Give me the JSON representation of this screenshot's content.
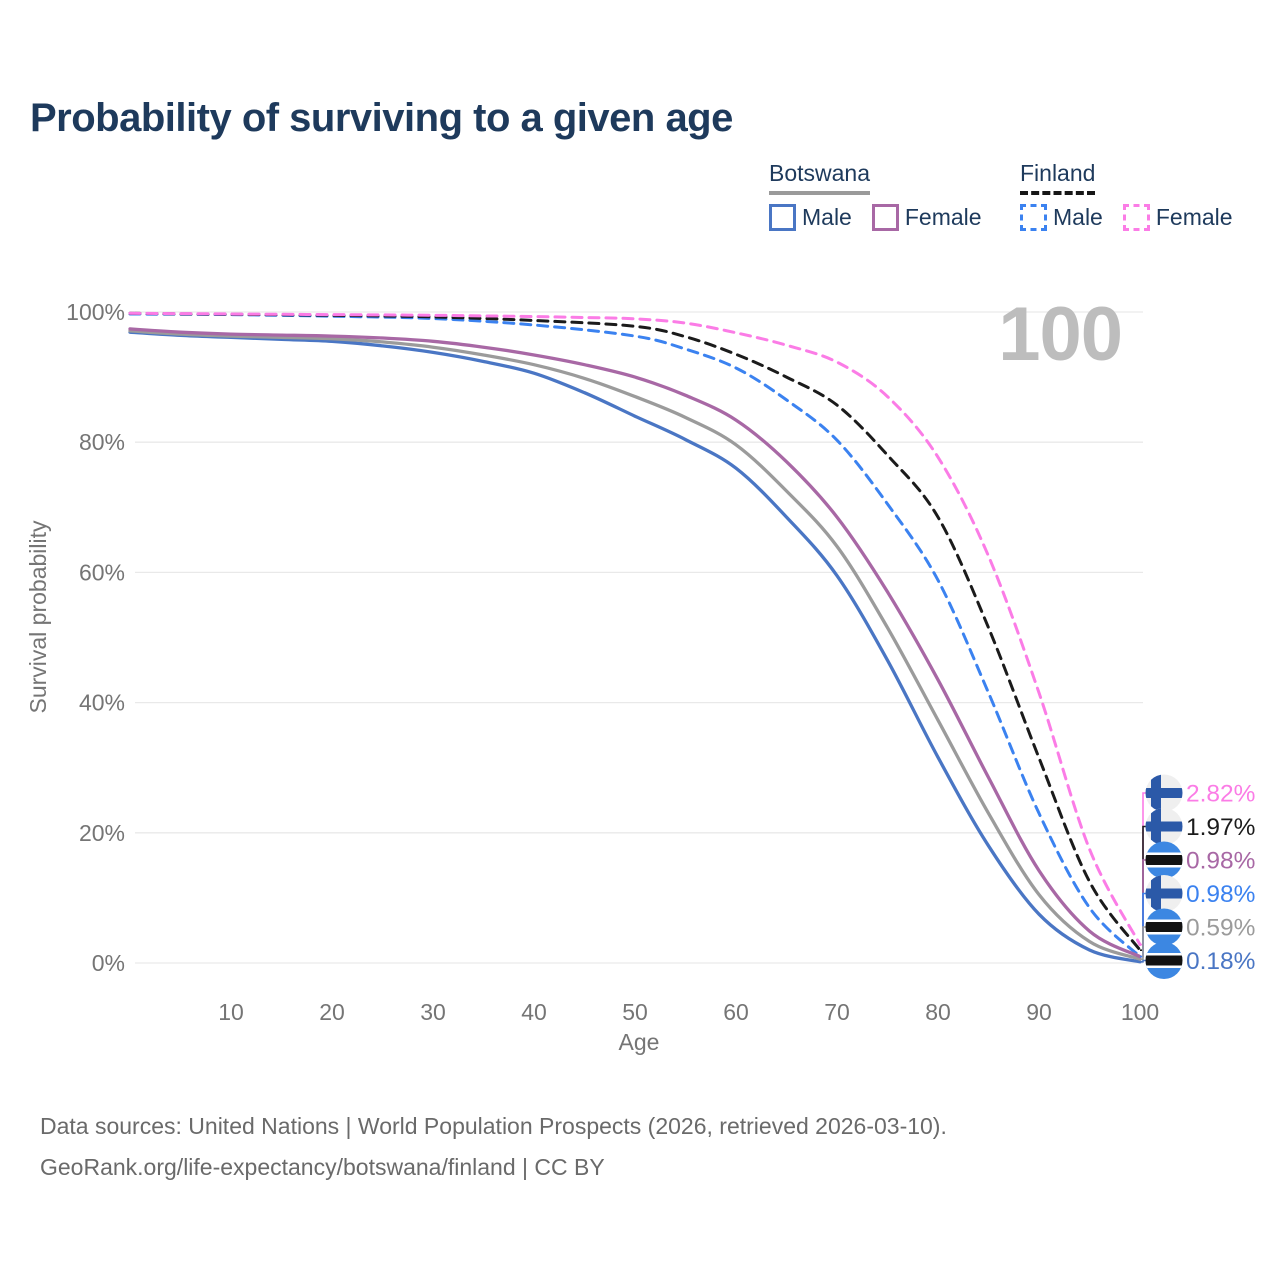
{
  "title": "Probability of surviving to a given age",
  "watermark_age": "100",
  "legend": {
    "groups": [
      {
        "country": "Botswana",
        "line_style": "solid",
        "underline_color": "#9a9a9a",
        "items": [
          {
            "label": "Male",
            "color": "#4a76c4",
            "dash": false
          },
          {
            "label": "Female",
            "color": "#a868a5",
            "dash": false
          }
        ]
      },
      {
        "country": "Finland",
        "line_style": "dashed",
        "underline_color": "#161616",
        "items": [
          {
            "label": "Male",
            "color": "#3b82f0",
            "dash": true
          },
          {
            "label": "Female",
            "color": "#fb7ce6",
            "dash": true
          }
        ]
      }
    ]
  },
  "chart_data": {
    "type": "line",
    "title": "Probability of surviving to a given age",
    "xlabel": "Age",
    "ylabel": "Survival probability",
    "xlim": [
      0,
      100
    ],
    "ylim": [
      0,
      100
    ],
    "grid": "horizontal-only",
    "x_ticks": [
      {
        "age": 10,
        "label": "10"
      },
      {
        "age": 20,
        "label": "20"
      },
      {
        "age": 30,
        "label": "30"
      },
      {
        "age": 40,
        "label": "40"
      },
      {
        "age": 50,
        "label": "50"
      },
      {
        "age": 60,
        "label": "60"
      },
      {
        "age": 70,
        "label": "70"
      },
      {
        "age": 80,
        "label": "80"
      },
      {
        "age": 90,
        "label": "90"
      },
      {
        "age": 100,
        "label": "100"
      }
    ],
    "y_ticks": [
      {
        "pct": 0,
        "label": "0%"
      },
      {
        "pct": 20,
        "label": "20%"
      },
      {
        "pct": 40,
        "label": "40%"
      },
      {
        "pct": 60,
        "label": "60%"
      },
      {
        "pct": 80,
        "label": "80%"
      },
      {
        "pct": 100,
        "label": "100%"
      }
    ],
    "series": [
      {
        "id": "finland-female",
        "country": "Finland",
        "sex": "Female",
        "flag": "finland",
        "color": "#fb7ce6",
        "dash": true,
        "end_label": "2.82%",
        "end_value": 2.82,
        "points": [
          [
            0,
            99.8
          ],
          [
            5,
            99.75
          ],
          [
            10,
            99.7
          ],
          [
            15,
            99.65
          ],
          [
            20,
            99.6
          ],
          [
            25,
            99.55
          ],
          [
            30,
            99.5
          ],
          [
            35,
            99.4
          ],
          [
            40,
            99.3
          ],
          [
            45,
            99.15
          ],
          [
            50,
            98.95
          ],
          [
            55,
            98.3
          ],
          [
            60,
            96.8
          ],
          [
            65,
            94.9
          ],
          [
            70,
            92.3
          ],
          [
            75,
            87.0
          ],
          [
            80,
            77.7
          ],
          [
            85,
            62.5
          ],
          [
            90,
            41.5
          ],
          [
            95,
            17.5
          ],
          [
            100,
            2.82
          ]
        ]
      },
      {
        "id": "finland-total",
        "country": "Finland",
        "sex": "Both sexes",
        "flag": "finland",
        "color": "#1b1b1b",
        "dash": true,
        "end_label": "1.97%",
        "end_value": 1.97,
        "points": [
          [
            0,
            99.8
          ],
          [
            10,
            99.65
          ],
          [
            20,
            99.5
          ],
          [
            30,
            99.25
          ],
          [
            40,
            98.7
          ],
          [
            50,
            97.8
          ],
          [
            55,
            96.2
          ],
          [
            60,
            93.5
          ],
          [
            65,
            90.0
          ],
          [
            70,
            85.7
          ],
          [
            75,
            78.0
          ],
          [
            80,
            68.5
          ],
          [
            85,
            51.5
          ],
          [
            90,
            31.5
          ],
          [
            95,
            12.5
          ],
          [
            100,
            1.97
          ]
        ]
      },
      {
        "id": "botswana-female",
        "country": "Botswana",
        "sex": "Female",
        "flag": "botswana",
        "color": "#a868a5",
        "dash": false,
        "end_label": "0.98%",
        "end_value": 0.98,
        "points": [
          [
            0,
            97.4
          ],
          [
            5,
            96.9
          ],
          [
            10,
            96.6
          ],
          [
            15,
            96.45
          ],
          [
            20,
            96.3
          ],
          [
            25,
            96.0
          ],
          [
            30,
            95.5
          ],
          [
            35,
            94.6
          ],
          [
            40,
            93.4
          ],
          [
            45,
            91.9
          ],
          [
            50,
            90.0
          ],
          [
            55,
            87.2
          ],
          [
            60,
            83.4
          ],
          [
            65,
            77.0
          ],
          [
            70,
            68.5
          ],
          [
            75,
            57.0
          ],
          [
            80,
            43.5
          ],
          [
            85,
            28.5
          ],
          [
            90,
            14.2
          ],
          [
            95,
            4.9
          ],
          [
            100,
            0.98
          ]
        ]
      },
      {
        "id": "finland-male",
        "country": "Finland",
        "sex": "Male",
        "flag": "finland",
        "color": "#3b82f0",
        "dash": true,
        "end_label": "0.98%",
        "end_value": 0.98,
        "points": [
          [
            0,
            99.7
          ],
          [
            10,
            99.6
          ],
          [
            20,
            99.35
          ],
          [
            30,
            99.0
          ],
          [
            40,
            98.0
          ],
          [
            50,
            96.3
          ],
          [
            55,
            94.3
          ],
          [
            60,
            91.4
          ],
          [
            65,
            86.5
          ],
          [
            70,
            80.3
          ],
          [
            75,
            70.5
          ],
          [
            80,
            58.8
          ],
          [
            85,
            41.5
          ],
          [
            90,
            23.0
          ],
          [
            95,
            8.5
          ],
          [
            100,
            0.98
          ]
        ]
      },
      {
        "id": "botswana-total",
        "country": "Botswana",
        "sex": "Both sexes",
        "flag": "botswana",
        "color": "#9b9b9b",
        "dash": false,
        "end_label": "0.59%",
        "end_value": 0.59,
        "points": [
          [
            0,
            97.1
          ],
          [
            5,
            96.6
          ],
          [
            10,
            96.3
          ],
          [
            15,
            96.1
          ],
          [
            20,
            95.9
          ],
          [
            25,
            95.4
          ],
          [
            30,
            94.6
          ],
          [
            35,
            93.4
          ],
          [
            40,
            91.9
          ],
          [
            45,
            89.8
          ],
          [
            50,
            87.0
          ],
          [
            55,
            83.8
          ],
          [
            60,
            79.6
          ],
          [
            65,
            72.5
          ],
          [
            70,
            64.0
          ],
          [
            75,
            51.5
          ],
          [
            80,
            37.3
          ],
          [
            85,
            23.0
          ],
          [
            90,
            10.5
          ],
          [
            95,
            3.3
          ],
          [
            100,
            0.59
          ]
        ]
      },
      {
        "id": "botswana-male",
        "country": "Botswana",
        "sex": "Male",
        "flag": "botswana",
        "color": "#4a76c4",
        "dash": false,
        "end_label": "0.18%",
        "end_value": 0.18,
        "points": [
          [
            0,
            96.9
          ],
          [
            5,
            96.4
          ],
          [
            10,
            96.1
          ],
          [
            15,
            95.8
          ],
          [
            20,
            95.5
          ],
          [
            25,
            94.8
          ],
          [
            30,
            93.8
          ],
          [
            35,
            92.4
          ],
          [
            40,
            90.6
          ],
          [
            45,
            87.6
          ],
          [
            50,
            84.0
          ],
          [
            55,
            80.4
          ],
          [
            60,
            76.0
          ],
          [
            65,
            68.5
          ],
          [
            70,
            59.5
          ],
          [
            75,
            46.5
          ],
          [
            80,
            31.6
          ],
          [
            85,
            18.0
          ],
          [
            90,
            7.5
          ],
          [
            95,
            2.0
          ],
          [
            100,
            0.18
          ]
        ]
      }
    ],
    "flag_colors": {
      "finland_bg": "#efefef",
      "finland_cross": "#2b59a8",
      "botswana_bg": "#3c87e2",
      "botswana_band": "#121212",
      "botswana_band_edge": "#ffffff"
    },
    "axis_text_color": "#757575",
    "grid_color": "#e9e9e9"
  },
  "footer": {
    "line1": "Data sources: United Nations | World Population Prospects (2026, retrieved 2026-03-10).",
    "line2": "GeoRank.org/life-expectancy/botswana/finland | CC BY"
  }
}
